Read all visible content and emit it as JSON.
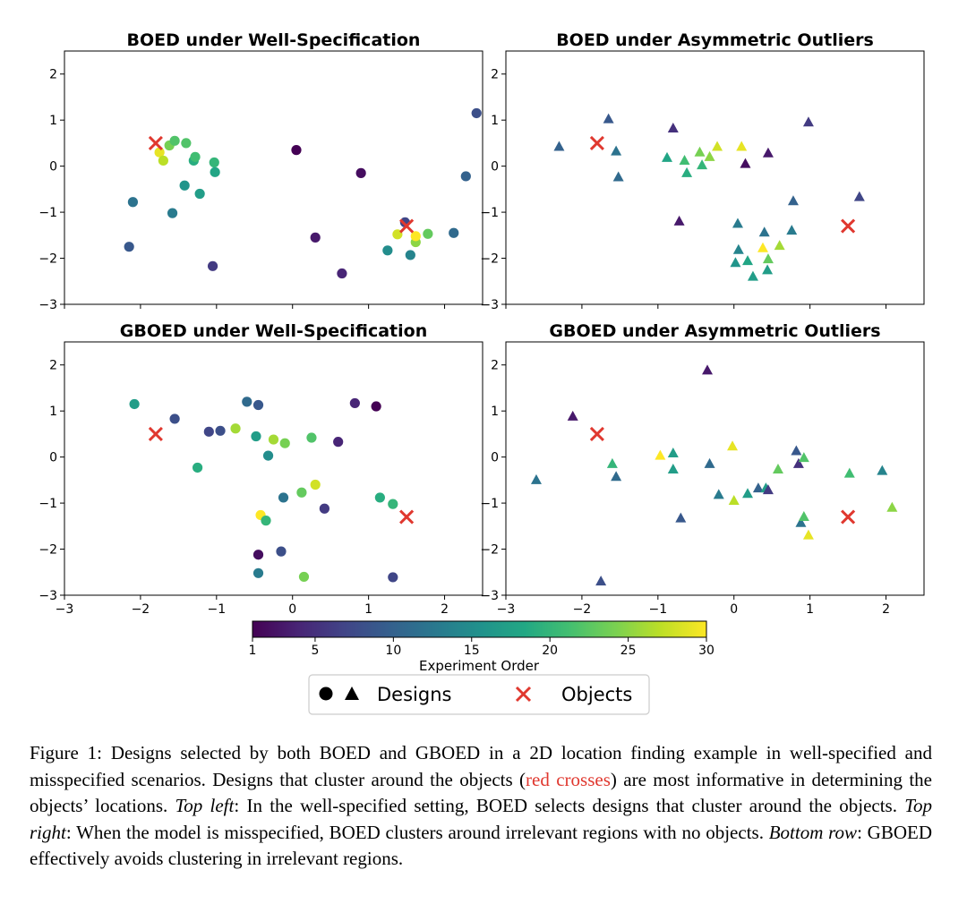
{
  "chart_data": {
    "type": "scatter",
    "colorbar": {
      "label": "Experiment Order",
      "min": 1,
      "max": 30,
      "ticks": [
        1,
        5,
        10,
        15,
        20,
        25,
        30
      ],
      "colormap": "viridis"
    },
    "legend": {
      "designs_label": "Designs",
      "objects_label": "Objects",
      "placement": "bottom-center"
    },
    "x_tick_labels": [
      "−3",
      "−2",
      "−1",
      "0",
      "1",
      "2"
    ],
    "y_tick_labels": [
      "−3",
      "−2",
      "−1",
      "0",
      "1",
      "2"
    ],
    "xlim": [
      -3,
      2.5
    ],
    "ylim": [
      -3,
      2.5
    ],
    "object_color": "#e0382f",
    "panels": [
      {
        "title": "BOED under Well-Specification",
        "marker": "circle",
        "show_x_ticks": false,
        "objects": [
          [
            -1.8,
            0.5
          ],
          [
            1.5,
            -1.3
          ]
        ],
        "points": [
          [
            -2.1,
            -0.78,
            12
          ],
          [
            -2.15,
            -1.75,
            9
          ],
          [
            -1.75,
            0.3,
            29
          ],
          [
            -1.7,
            0.12,
            27
          ],
          [
            -1.62,
            0.45,
            24
          ],
          [
            -1.55,
            0.55,
            22
          ],
          [
            -1.4,
            0.5,
            22
          ],
          [
            -1.58,
            -1.02,
            13
          ],
          [
            -1.42,
            -0.42,
            16
          ],
          [
            -1.3,
            0.12,
            19
          ],
          [
            -1.28,
            0.2,
            21
          ],
          [
            -1.22,
            -0.6,
            17
          ],
          [
            -1.03,
            0.08,
            20
          ],
          [
            -1.02,
            -0.13,
            18
          ],
          [
            -1.05,
            -2.17,
            6
          ],
          [
            0.05,
            0.35,
            1
          ],
          [
            0.3,
            -1.55,
            3
          ],
          [
            0.65,
            -2.33,
            4
          ],
          [
            0.9,
            -0.15,
            2
          ],
          [
            1.25,
            -1.83,
            15
          ],
          [
            1.38,
            -1.48,
            28
          ],
          [
            1.48,
            -1.22,
            7
          ],
          [
            1.55,
            -1.93,
            14
          ],
          [
            1.62,
            -1.65,
            25
          ],
          [
            1.62,
            -1.52,
            30
          ],
          [
            1.78,
            -1.47,
            23
          ],
          [
            2.12,
            -1.45,
            11
          ],
          [
            2.28,
            -0.22,
            10
          ],
          [
            2.42,
            1.15,
            8
          ]
        ]
      },
      {
        "title": "BOED under Asymmetric Outliers",
        "marker": "triangle",
        "show_x_ticks": false,
        "objects": [
          [
            -1.8,
            0.5
          ],
          [
            1.5,
            -1.3
          ]
        ],
        "points": [
          [
            -2.3,
            0.42,
            10
          ],
          [
            -1.65,
            1.02,
            9
          ],
          [
            -1.55,
            0.32,
            12
          ],
          [
            -1.52,
            -0.24,
            11
          ],
          [
            -0.88,
            0.18,
            18
          ],
          [
            -0.8,
            0.82,
            5
          ],
          [
            -0.72,
            -1.2,
            3
          ],
          [
            -0.65,
            0.12,
            21
          ],
          [
            -0.62,
            -0.15,
            19
          ],
          [
            -0.45,
            0.3,
            24
          ],
          [
            -0.42,
            0.02,
            20
          ],
          [
            -0.32,
            0.2,
            25
          ],
          [
            -0.22,
            0.42,
            28
          ],
          [
            0.02,
            -2.1,
            16
          ],
          [
            0.05,
            -1.25,
            13
          ],
          [
            0.06,
            -1.82,
            14
          ],
          [
            0.1,
            0.42,
            29
          ],
          [
            0.15,
            0.05,
            2
          ],
          [
            0.18,
            -2.06,
            18
          ],
          [
            0.25,
            -2.4,
            17
          ],
          [
            0.38,
            -1.78,
            30
          ],
          [
            0.4,
            -1.44,
            12
          ],
          [
            0.45,
            -2.02,
            23
          ],
          [
            0.44,
            -2.26,
            17
          ],
          [
            0.45,
            0.28,
            3
          ],
          [
            0.6,
            -1.73,
            26
          ],
          [
            0.76,
            -1.4,
            13
          ],
          [
            0.78,
            -0.76,
            10
          ],
          [
            0.98,
            0.95,
            6
          ],
          [
            1.65,
            -0.67,
            7
          ]
        ]
      },
      {
        "title": "GBOED under Well-Specification",
        "marker": "circle",
        "show_x_ticks": true,
        "objects": [
          [
            -1.8,
            0.5
          ],
          [
            1.5,
            -1.3
          ]
        ],
        "points": [
          [
            -2.08,
            1.15,
            17
          ],
          [
            -1.55,
            0.83,
            8
          ],
          [
            -1.25,
            -0.23,
            19
          ],
          [
            -1.1,
            0.55,
            7
          ],
          [
            -0.95,
            0.57,
            8
          ],
          [
            -0.75,
            0.62,
            26
          ],
          [
            -0.6,
            1.2,
            11
          ],
          [
            -0.45,
            1.13,
            9
          ],
          [
            -0.48,
            0.45,
            17
          ],
          [
            -0.45,
            -2.52,
            13
          ],
          [
            -0.45,
            -2.12,
            2
          ],
          [
            -0.42,
            -1.26,
            30
          ],
          [
            -0.35,
            -1.38,
            20
          ],
          [
            -0.32,
            0.03,
            15
          ],
          [
            -0.25,
            0.38,
            26
          ],
          [
            -0.15,
            -2.05,
            8
          ],
          [
            -0.12,
            -0.88,
            12
          ],
          [
            -0.1,
            0.3,
            24
          ],
          [
            0.12,
            -0.77,
            23
          ],
          [
            0.15,
            -2.6,
            24
          ],
          [
            0.25,
            0.42,
            22
          ],
          [
            0.3,
            -0.6,
            28
          ],
          [
            0.42,
            -1.12,
            6
          ],
          [
            0.6,
            0.33,
            4
          ],
          [
            0.82,
            1.17,
            4
          ],
          [
            1.1,
            1.1,
            1
          ],
          [
            1.15,
            -0.88,
            19
          ],
          [
            1.32,
            -1.02,
            20
          ],
          [
            1.32,
            -2.61,
            7
          ]
        ]
      },
      {
        "title": "GBOED under Asymmetric Outliers",
        "marker": "triangle",
        "show_x_ticks": true,
        "objects": [
          [
            -1.8,
            0.5
          ],
          [
            1.5,
            -1.3
          ]
        ],
        "points": [
          [
            -2.6,
            -0.5,
            12
          ],
          [
            -2.12,
            0.88,
            3
          ],
          [
            -1.75,
            -2.7,
            8
          ],
          [
            -1.6,
            -0.15,
            20
          ],
          [
            -1.55,
            -0.43,
            11
          ],
          [
            -0.97,
            0.03,
            30
          ],
          [
            -0.8,
            0.08,
            17
          ],
          [
            -0.8,
            -0.27,
            17
          ],
          [
            -0.7,
            -1.33,
            9
          ],
          [
            -0.32,
            -0.15,
            11
          ],
          [
            -0.35,
            1.88,
            3
          ],
          [
            -0.2,
            -0.82,
            13
          ],
          [
            -0.02,
            0.23,
            29
          ],
          [
            0.0,
            -0.95,
            27
          ],
          [
            0.18,
            -0.8,
            17
          ],
          [
            0.32,
            -0.68,
            10
          ],
          [
            0.42,
            -0.68,
            17
          ],
          [
            0.45,
            -0.72,
            6
          ],
          [
            0.58,
            -0.27,
            23
          ],
          [
            0.82,
            0.13,
            9
          ],
          [
            0.85,
            -0.15,
            5
          ],
          [
            0.88,
            -1.43,
            12
          ],
          [
            0.92,
            -0.02,
            22
          ],
          [
            0.92,
            -1.3,
            22
          ],
          [
            0.98,
            -1.7,
            29
          ],
          [
            1.52,
            -0.36,
            21
          ],
          [
            1.95,
            -0.3,
            14
          ],
          [
            2.08,
            -1.1,
            25
          ]
        ]
      }
    ]
  },
  "caption": {
    "label": "Figure 1:",
    "part1": " Designs selected by both BOED and GBOED in a 2D location finding example in well-specified and misspecified scenarios. Designs that cluster around the objects (",
    "red_text": "red crosses",
    "part2": ") are most informative in determining the objects’ locations. ",
    "top_left_label": "Top left",
    "top_left_text": ": In the well-specified setting, BOED selects designs that cluster around the objects. ",
    "top_right_label": "Top right",
    "top_right_text": ": When the model is misspecified, BOED clusters around irrelevant regions with no objects. ",
    "bottom_row_label": "Bottom row",
    "bottom_row_text": ": GBOED effectively avoids clustering in irrelevant regions."
  }
}
